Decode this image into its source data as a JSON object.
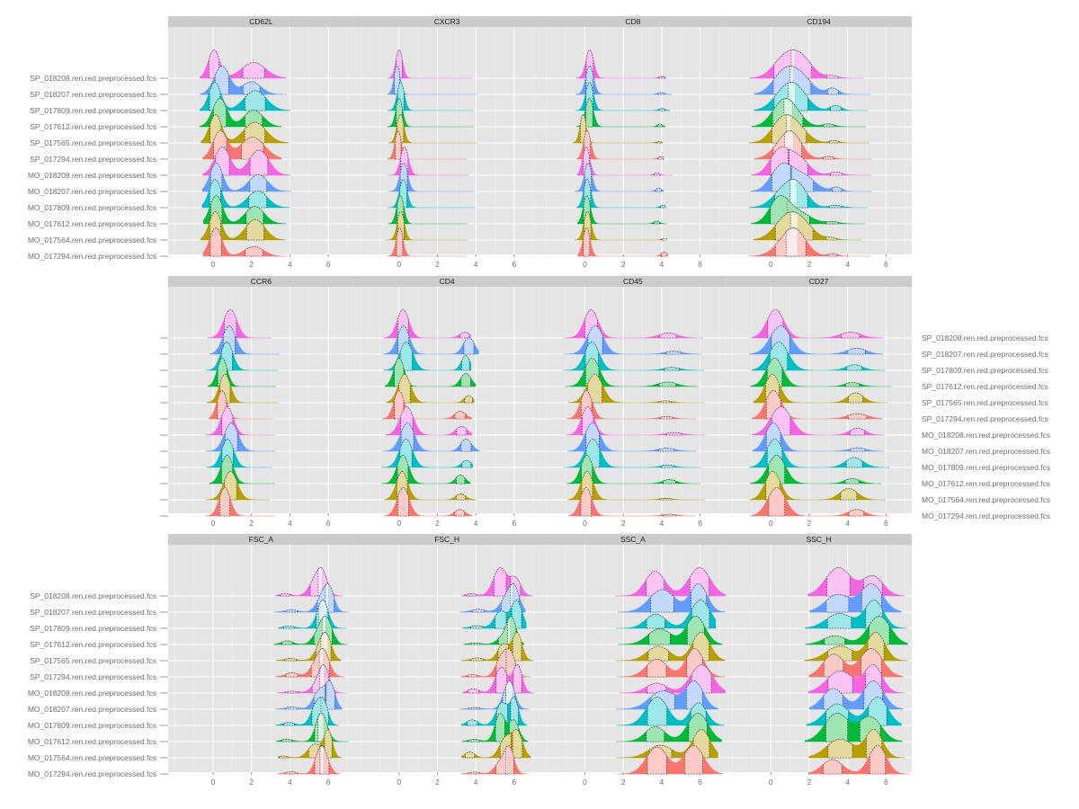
{
  "chart_data": {
    "type": "area",
    "chart_kind": "density ridgeline with quantile gates",
    "x_ticks": [
      0,
      2,
      4,
      6
    ],
    "xlim": [
      -2.2,
      7.2
    ],
    "samples": [
      "SP_018208.ren.red.preprocessed.fcs",
      "SP_018207.ren.red.preprocessed.fcs",
      "SP_017809.ren.red.preprocessed.fcs",
      "SP_017612.ren.red.preprocessed.fcs",
      "SP_017565.ren.red.preprocessed.fcs",
      "SP_017294.ren.red.preprocessed.fcs",
      "MO_018208.ren.red.preprocessed.fcs",
      "MO_018207.ren.red.preprocessed.fcs",
      "MO_017809.ren.red.preprocessed.fcs",
      "MO_017612.ren.red.preprocessed.fcs",
      "MO_017564.ren.red.preprocessed.fcs",
      "MO_017294.ren.red.preprocessed.fcs"
    ],
    "colors": [
      "#F564E3",
      "#619CFF",
      "#00BFC4",
      "#00BA38",
      "#B79F00",
      "#F8766D",
      "#F564E3",
      "#619CFF",
      "#00BFC4",
      "#00BA38",
      "#B79F00",
      "#F8766D"
    ],
    "grid": true,
    "legend": "none",
    "panels": [
      {
        "name": "CD62L",
        "peaks": [
          [
            0.3,
            0.35,
            1.0
          ],
          [
            2.2,
            0.55,
            0.55
          ]
        ],
        "range": [
          -0.6,
          3.8
        ]
      },
      {
        "name": "CXCR3",
        "peaks": [
          [
            0.1,
            0.18,
            1.0
          ]
        ],
        "range": [
          -0.6,
          3.8
        ]
      },
      {
        "name": "CD8",
        "peaks": [
          [
            0.1,
            0.18,
            1.0
          ],
          [
            3.9,
            0.15,
            0.08
          ]
        ],
        "range": [
          -0.5,
          4.3
        ]
      },
      {
        "name": "CD194",
        "peaks": [
          [
            0.6,
            0.55,
            0.9
          ],
          [
            1.4,
            0.55,
            0.8
          ],
          [
            3.2,
            0.3,
            0.12
          ]
        ],
        "range": [
          -1.0,
          5.0
        ]
      },
      {
        "name": "CCR6",
        "peaks": [
          [
            0.7,
            0.3,
            1.0
          ]
        ],
        "range": [
          -0.3,
          3.2
        ]
      },
      {
        "name": "CD4",
        "peaks": [
          [
            0.2,
            0.3,
            1.0
          ],
          [
            3.4,
            0.25,
            0.25
          ]
        ],
        "range": [
          -0.8,
          4.0
        ]
      },
      {
        "name": "CD45",
        "peaks": [
          [
            0.3,
            0.35,
            1.0
          ],
          [
            4.4,
            0.4,
            0.1
          ]
        ],
        "range": [
          -1.0,
          6.0
        ]
      },
      {
        "name": "CD27",
        "peaks": [
          [
            0.3,
            0.45,
            1.0
          ],
          [
            4.3,
            0.45,
            0.25
          ]
        ],
        "range": [
          -1.0,
          6.0
        ]
      },
      {
        "name": "FSC_A",
        "peaks": [
          [
            3.9,
            0.3,
            0.12
          ],
          [
            5.5,
            0.3,
            0.75
          ],
          [
            5.95,
            0.25,
            1.0
          ]
        ],
        "range": [
          3.3,
          6.8
        ]
      },
      {
        "name": "FSC_H",
        "peaks": [
          [
            3.9,
            0.3,
            0.12
          ],
          [
            5.5,
            0.3,
            0.75
          ],
          [
            5.95,
            0.25,
            1.0
          ]
        ],
        "range": [
          3.3,
          6.8
        ]
      },
      {
        "name": "SSC_A",
        "peaks": [
          [
            3.9,
            0.6,
            0.65
          ],
          [
            5.85,
            0.5,
            1.0
          ]
        ],
        "range": [
          1.7,
          7.1
        ]
      },
      {
        "name": "SSC_H",
        "peaks": [
          [
            3.4,
            0.6,
            0.65
          ],
          [
            5.4,
            0.5,
            1.0
          ]
        ],
        "range": [
          1.9,
          7.0
        ]
      }
    ]
  }
}
